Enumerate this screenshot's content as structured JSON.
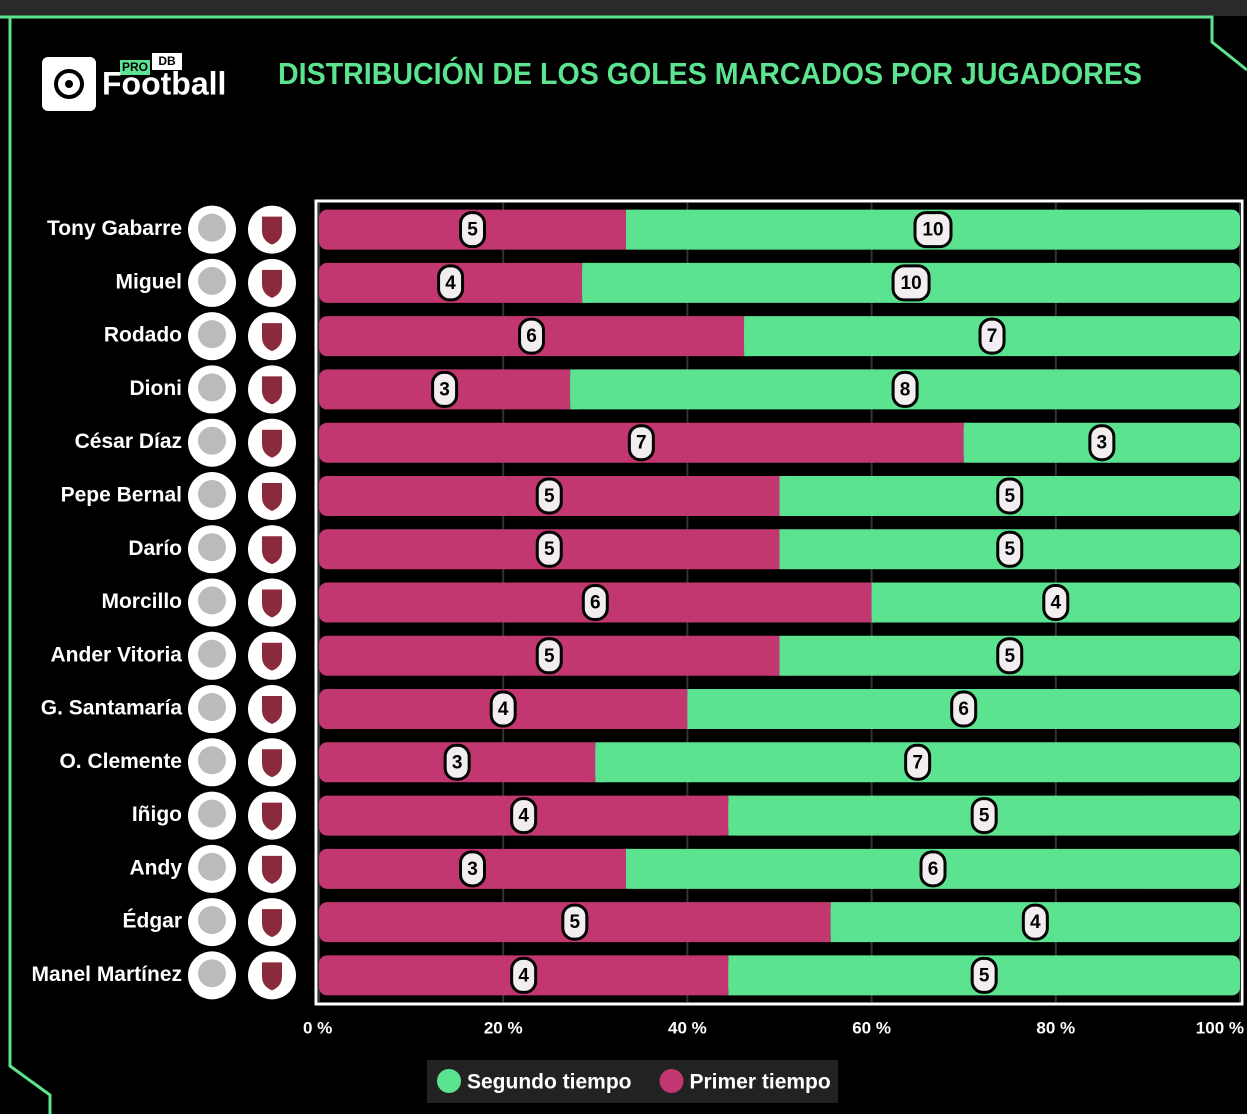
{
  "logo": {
    "pro": "PRO",
    "db": "DB",
    "name": "Football"
  },
  "chart_data": {
    "type": "bar",
    "orientation": "horizontal",
    "stack": "percent",
    "title": "DISTRIBUCIÓN DE LOS GOLES MARCADOS POR JUGADORES",
    "categories": [
      "Tony Gabarre",
      "Miguel",
      "Rodado",
      "Dioni",
      "César Díaz",
      "Pepe Bernal",
      "Darío",
      "Morcillo",
      "Ander Vitoria",
      "G. Santamaría",
      "O. Clemente",
      "Iñigo",
      "Andy",
      "Édgar",
      "Manel Martínez"
    ],
    "series": [
      {
        "name": "Segundo tiempo",
        "color": "#5ce38f",
        "values": [
          10,
          10,
          7,
          8,
          3,
          5,
          5,
          4,
          5,
          6,
          7,
          5,
          6,
          4,
          5
        ]
      },
      {
        "name": "Primer tiempo",
        "color": "#c2376f",
        "values": [
          5,
          4,
          6,
          3,
          7,
          5,
          5,
          6,
          5,
          4,
          3,
          4,
          3,
          5,
          4
        ]
      }
    ],
    "xlim": [
      0,
      100
    ],
    "xticks": [
      {
        "value": 0,
        "label": "0 %"
      },
      {
        "value": 20,
        "label": "20 %"
      },
      {
        "value": 40,
        "label": "40 %"
      },
      {
        "value": 60,
        "label": "60 %"
      },
      {
        "value": 80,
        "label": "80 %"
      },
      {
        "value": 100,
        "label": "100 %"
      }
    ],
    "grid": true,
    "legend": "bottom"
  }
}
